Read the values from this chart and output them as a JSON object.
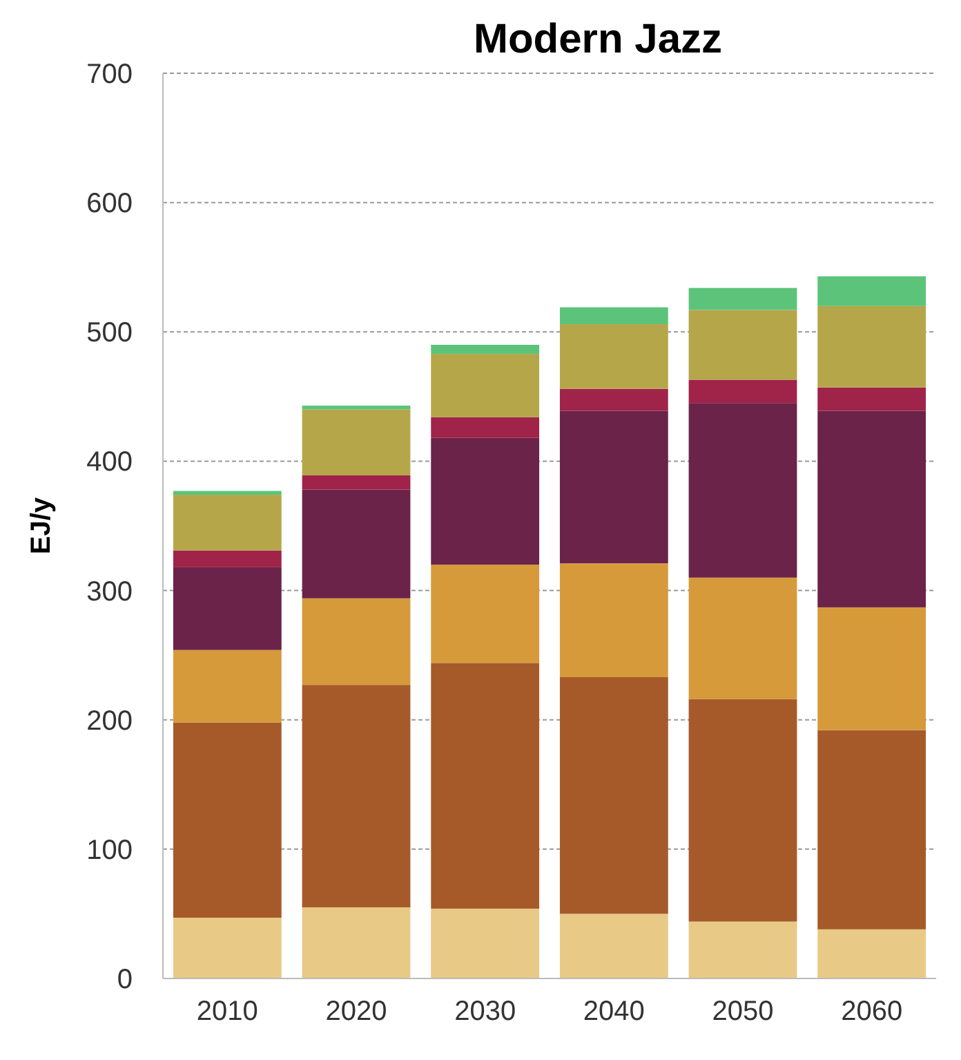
{
  "chart_data": {
    "type": "bar",
    "title": "Modern Jazz",
    "ylabel": "EJ/y",
    "stacked": true,
    "grid": "y",
    "categories": [
      "2010",
      "2020",
      "2030",
      "2040",
      "2050",
      "2060"
    ],
    "ylim": [
      0,
      700
    ],
    "yticks": [
      0,
      100,
      200,
      300,
      400,
      500,
      600,
      700
    ],
    "series": [
      {
        "color": "#e8c985",
        "values": [
          47,
          55,
          54,
          50,
          44,
          38
        ]
      },
      {
        "color": "#a65a2a",
        "values": [
          151,
          172,
          190,
          183,
          172,
          154
        ]
      },
      {
        "color": "#d69a3a",
        "values": [
          56,
          67,
          76,
          88,
          94,
          95
        ]
      },
      {
        "color": "#6b234a",
        "values": [
          64,
          84,
          98,
          118,
          135,
          152
        ]
      },
      {
        "color": "#a0234a",
        "values": [
          13,
          11,
          16,
          17,
          18,
          18
        ]
      },
      {
        "color": "#b5a64a",
        "values": [
          43,
          51,
          49,
          50,
          54,
          63
        ]
      },
      {
        "color": "#5cc47a",
        "values": [
          3,
          3,
          7,
          13,
          17,
          23
        ]
      }
    ]
  }
}
